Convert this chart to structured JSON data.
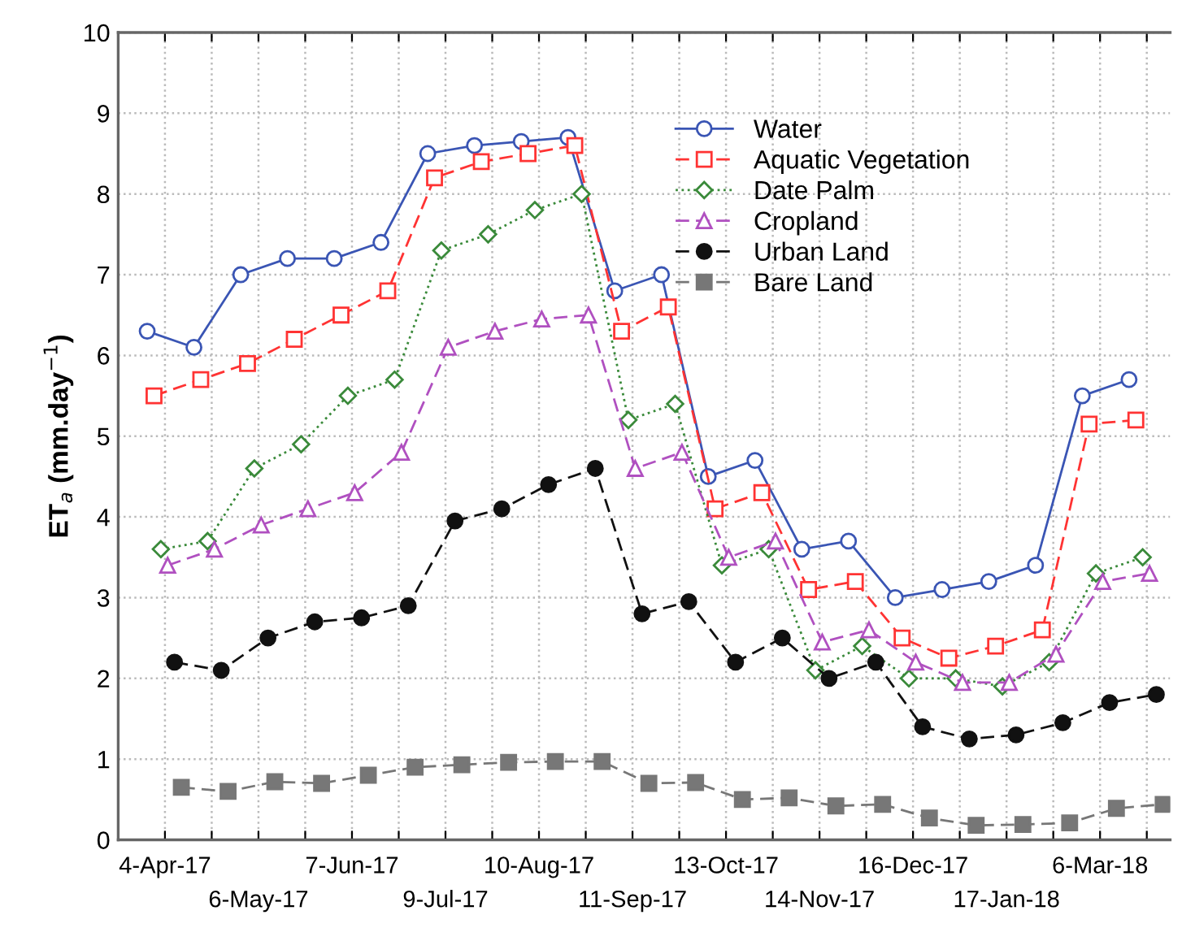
{
  "chart_data": {
    "type": "line",
    "ylabel": "ET$_{a}$ (mm.day$^{−1}$)",
    "categories": [
      "4-Apr-17",
      null,
      "6-May-17",
      null,
      "7-Jun-17",
      null,
      "9-Jul-17",
      null,
      "10-Aug-17",
      null,
      "11-Sep-17",
      null,
      "13-Oct-17",
      null,
      "14-Nov-17",
      null,
      "16-Dec-17",
      null,
      "17-Jan-18",
      null,
      "6-Mar-18",
      null
    ],
    "series": [
      {
        "name": "Water",
        "color": "#3a55b4",
        "marker": "circle",
        "line_style": "solid",
        "values": [
          6.3,
          6.1,
          7.0,
          7.2,
          7.2,
          7.4,
          8.5,
          8.6,
          8.65,
          8.7,
          6.8,
          7.0,
          4.5,
          4.7,
          3.6,
          3.7,
          3.0,
          3.1,
          3.2,
          3.4,
          5.5,
          5.7
        ]
      },
      {
        "name": "Aquatic Vegetation",
        "color": "#ff3333",
        "marker": "square",
        "line_style": "dashed",
        "values": [
          5.5,
          5.7,
          5.9,
          6.2,
          6.5,
          6.8,
          8.2,
          8.4,
          8.5,
          8.6,
          6.3,
          6.6,
          4.1,
          4.3,
          3.1,
          3.2,
          2.5,
          2.25,
          2.4,
          2.6,
          5.15,
          5.2
        ]
      },
      {
        "name": "Date Palm",
        "color": "#3a8a3a",
        "marker": "diamond",
        "line_style": "dotted",
        "values": [
          3.6,
          3.7,
          4.6,
          4.9,
          5.5,
          5.7,
          7.3,
          7.5,
          7.8,
          8.0,
          5.2,
          5.4,
          3.4,
          3.6,
          2.1,
          2.4,
          2.0,
          2.0,
          1.9,
          2.2,
          3.3,
          3.5
        ]
      },
      {
        "name": "Cropland",
        "color": "#b050c0",
        "marker": "triangle",
        "line_style": "dashed",
        "values": [
          3.4,
          3.6,
          3.9,
          4.1,
          4.3,
          4.8,
          6.1,
          6.3,
          6.45,
          6.5,
          4.6,
          4.8,
          3.5,
          3.7,
          2.45,
          2.6,
          2.2,
          1.95,
          1.95,
          2.3,
          3.2,
          3.3
        ]
      },
      {
        "name": "Urban Land",
        "color": "#111111",
        "marker": "circle",
        "line_style": "dashed",
        "values": [
          2.2,
          2.1,
          2.5,
          2.7,
          2.75,
          2.9,
          3.95,
          4.1,
          4.4,
          4.6,
          2.8,
          2.95,
          2.2,
          2.5,
          2.0,
          2.2,
          1.4,
          1.25,
          1.3,
          1.45,
          1.7,
          1.8
        ]
      },
      {
        "name": "Bare Land",
        "color": "#777777",
        "marker": "square",
        "line_style": "dashed",
        "values": [
          0.65,
          0.6,
          0.72,
          0.7,
          0.8,
          0.9,
          0.93,
          0.96,
          0.97,
          0.97,
          0.7,
          0.71,
          0.5,
          0.52,
          0.42,
          0.44,
          0.27,
          0.18,
          0.19,
          0.21,
          0.39,
          0.44
        ]
      }
    ],
    "ylim": [
      0,
      10
    ],
    "yticks": [
      0,
      1,
      2,
      3,
      4,
      5,
      6,
      7,
      8,
      9,
      10
    ],
    "grid": true,
    "legend": "top right"
  }
}
